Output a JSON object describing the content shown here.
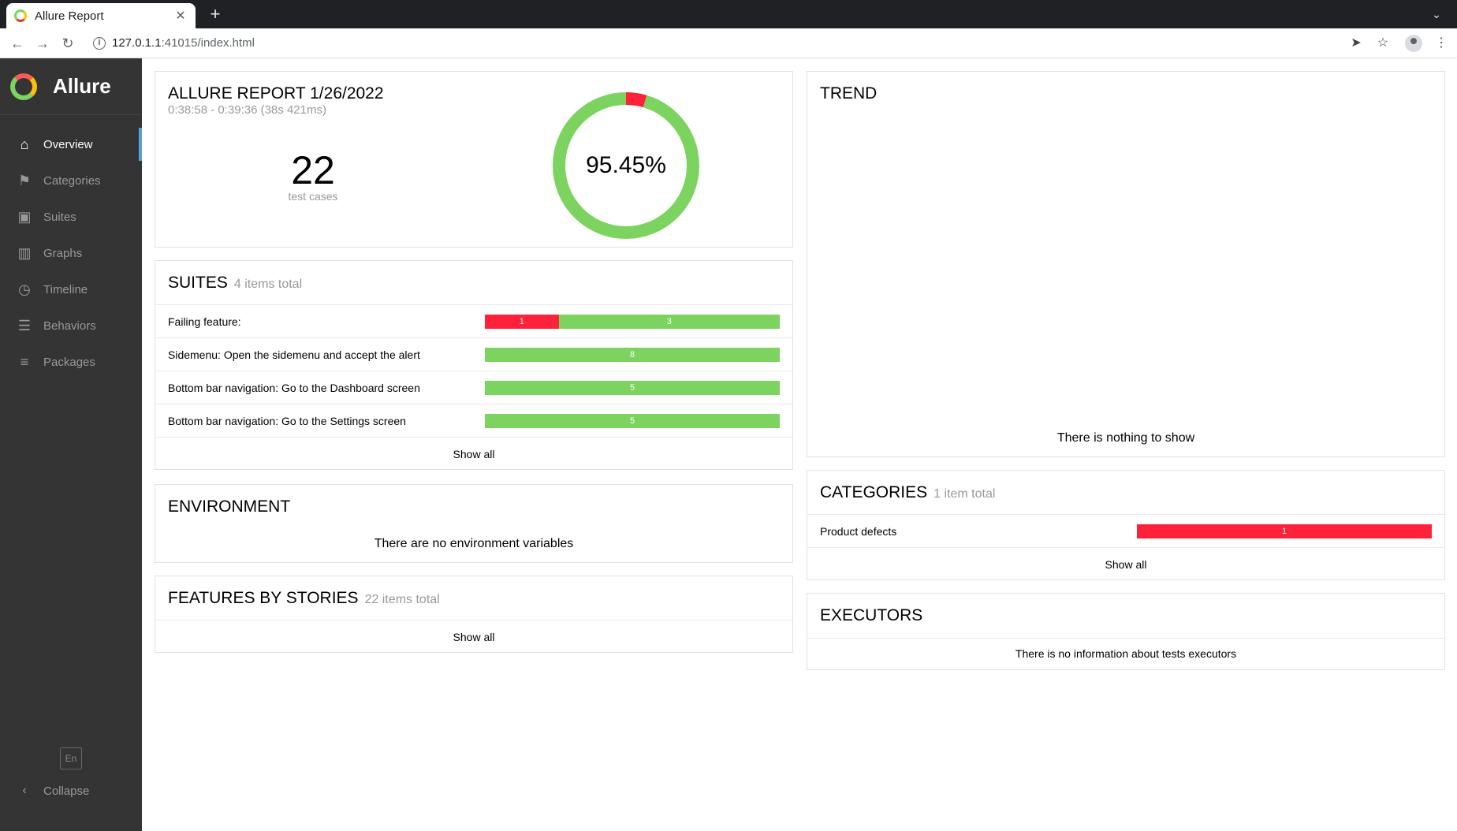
{
  "browser": {
    "tab_title": "Allure Report",
    "tab_close": "✕",
    "new_tab": "+",
    "tab_menu": "⌄",
    "url_host": "127.0.1.1",
    "url_rest": ":41015/index.html",
    "back": "←",
    "forward": "→",
    "reload": "↻",
    "info": "i",
    "share": "➤",
    "bookmark": "☆",
    "menu": "⋮"
  },
  "sidebar": {
    "brand": "Allure",
    "items": [
      {
        "label": "Overview",
        "icon": "home-icon",
        "glyph": "⌂",
        "active": true
      },
      {
        "label": "Categories",
        "icon": "flag-icon",
        "glyph": "⚑",
        "active": false
      },
      {
        "label": "Suites",
        "icon": "briefcase-icon",
        "glyph": "▣",
        "active": false
      },
      {
        "label": "Graphs",
        "icon": "bar-chart-icon",
        "glyph": "▥",
        "active": false
      },
      {
        "label": "Timeline",
        "icon": "clock-icon",
        "glyph": "◷",
        "active": false
      },
      {
        "label": "Behaviors",
        "icon": "list-icon",
        "glyph": "☰",
        "active": false
      },
      {
        "label": "Packages",
        "icon": "align-left-icon",
        "glyph": "≡",
        "active": false
      }
    ],
    "language": "En",
    "collapse_glyph": "‹",
    "collapse_label": "Collapse"
  },
  "summary": {
    "title": "ALLURE REPORT 1/26/2022",
    "time": "0:38:58 - 0:39:36 (38s 421ms)",
    "count": "22",
    "count_label": "test cases",
    "percent": "95.45%",
    "pass_fraction": 0.9545
  },
  "suites": {
    "title": "SUITES",
    "subtitle": "4 items total",
    "rows": [
      {
        "name": "Failing feature:",
        "failed": 1,
        "passed": 3
      },
      {
        "name": "Sidemenu: Open the sidemenu and accept the alert",
        "failed": 0,
        "passed": 8
      },
      {
        "name": "Bottom bar navigation: Go to the Dashboard screen",
        "failed": 0,
        "passed": 5
      },
      {
        "name": "Bottom bar navigation: Go to the Settings screen",
        "failed": 0,
        "passed": 5
      }
    ],
    "show_all": "Show all"
  },
  "environment": {
    "title": "ENVIRONMENT",
    "message": "There are no environment variables"
  },
  "features": {
    "title": "FEATURES BY STORIES",
    "subtitle": "22 items total",
    "show_all": "Show all"
  },
  "trend": {
    "title": "TREND",
    "message": "There is nothing to show"
  },
  "categories": {
    "title": "CATEGORIES",
    "subtitle": "1 item total",
    "rows": [
      {
        "name": "Product defects",
        "failed": 1,
        "passed": 0
      }
    ],
    "show_all": "Show all"
  },
  "executors": {
    "title": "EXECUTORS",
    "message": "There is no information about tests executors"
  },
  "colors": {
    "failed": "#fd2239",
    "passed": "#7dd35f",
    "sidebar": "#343434",
    "accent": "#5a9de0"
  }
}
